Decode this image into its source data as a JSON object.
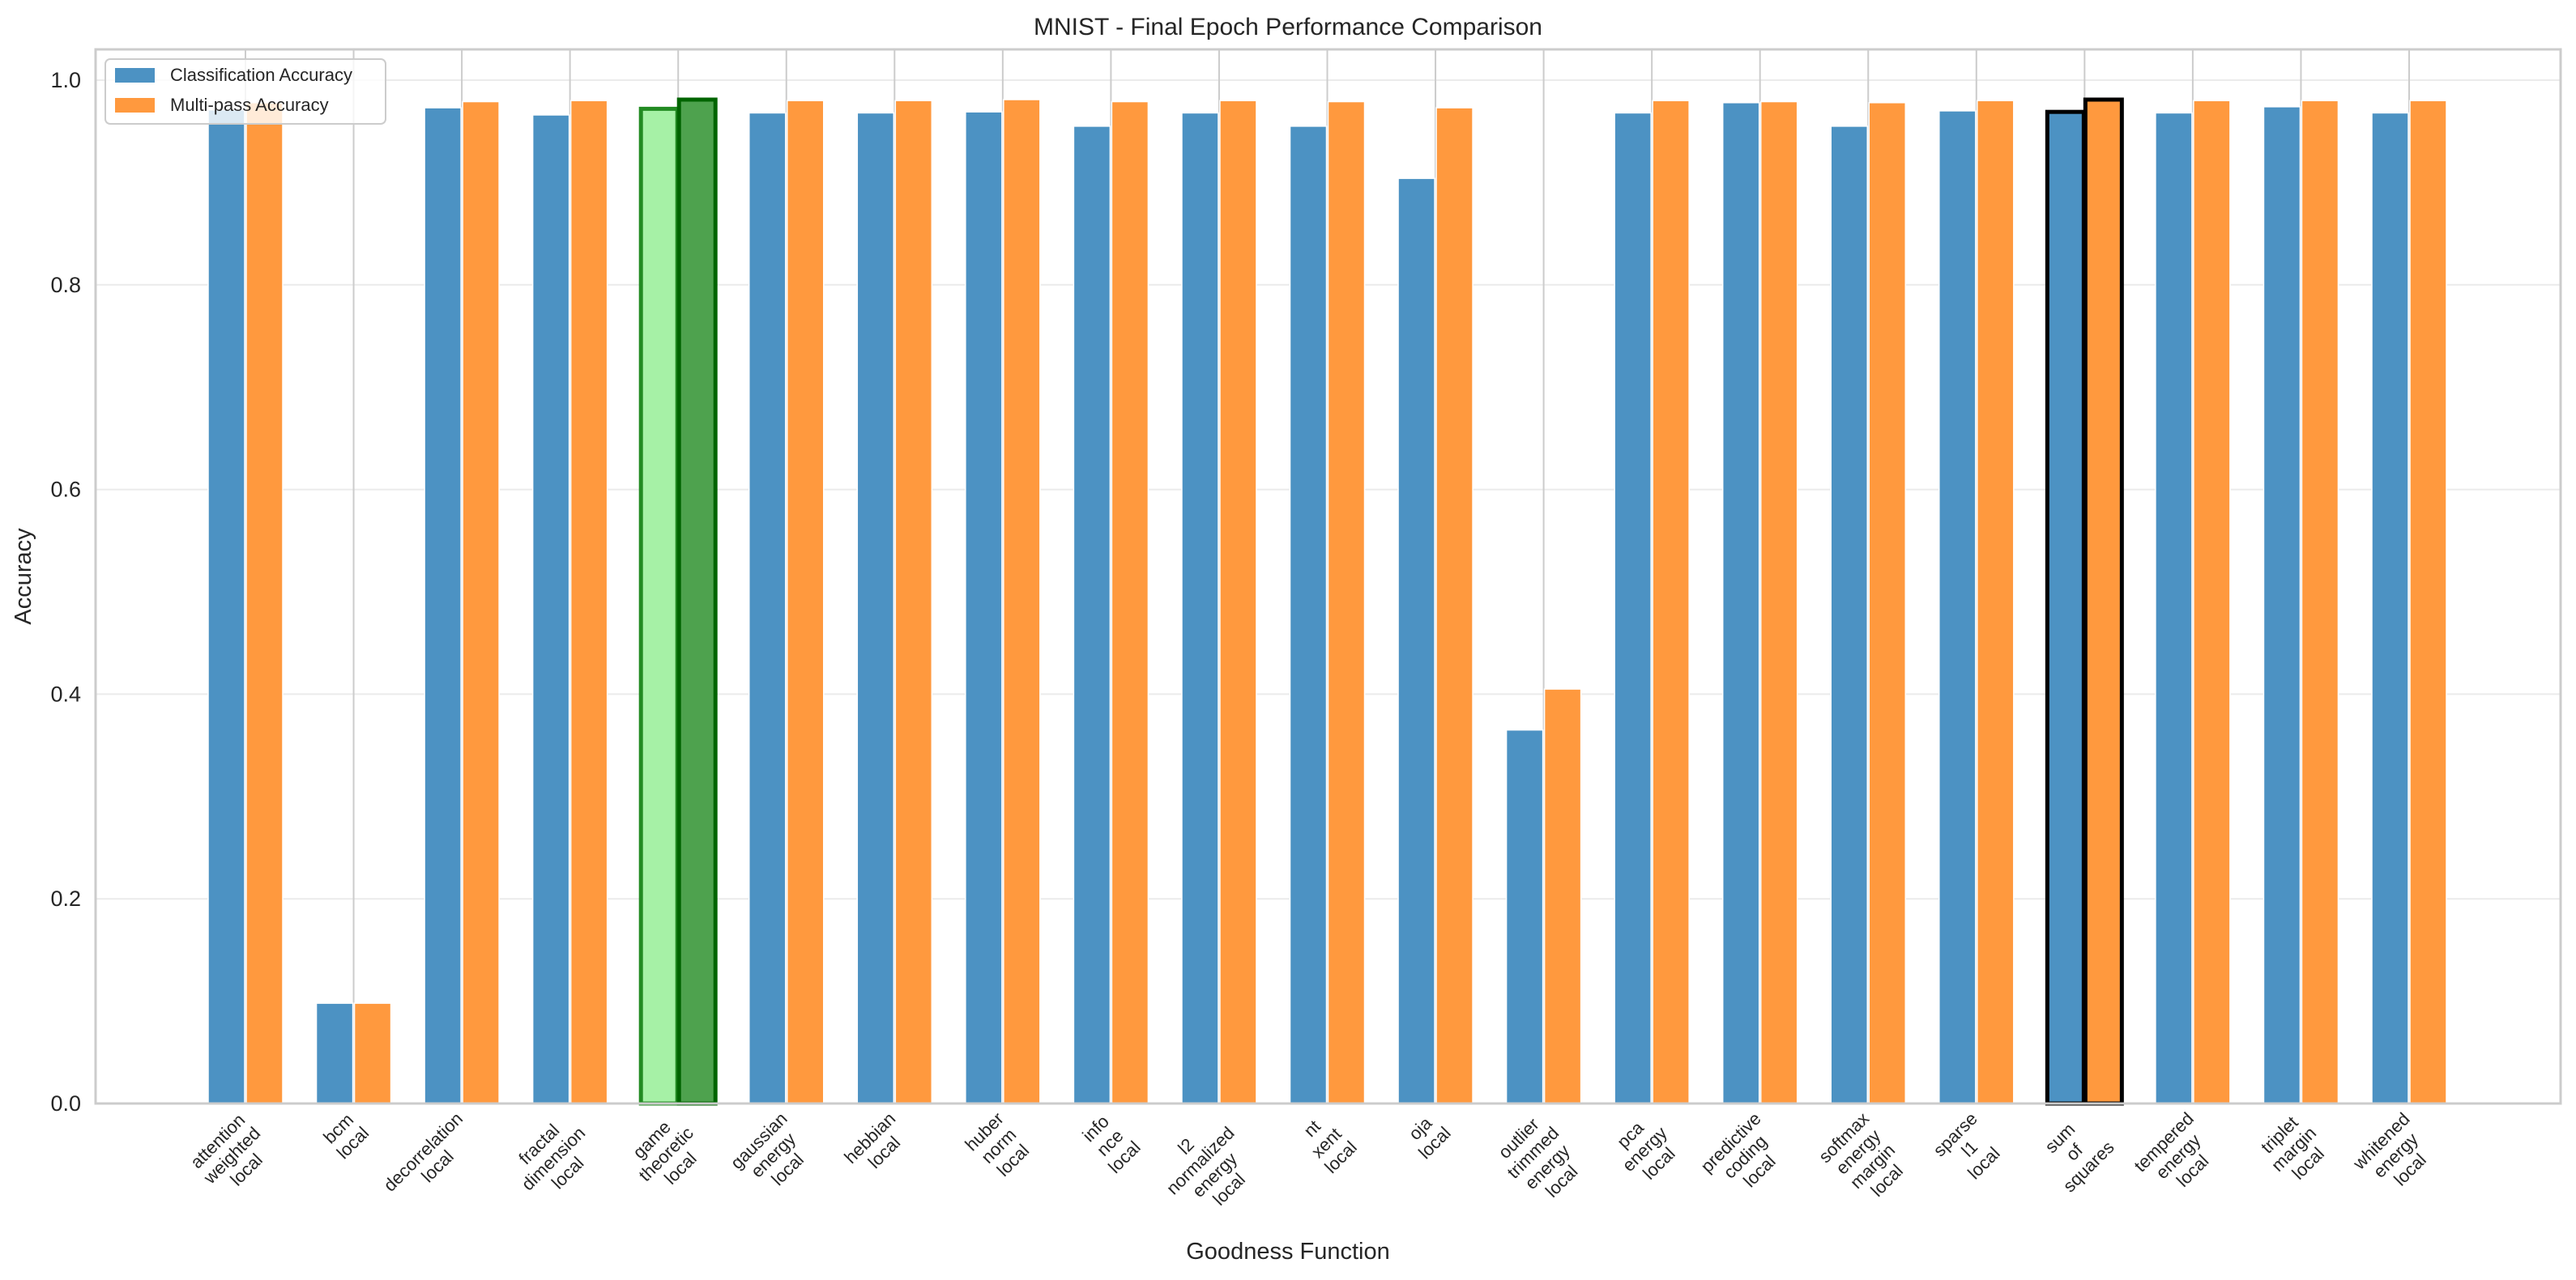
{
  "chart_data": {
    "type": "bar",
    "title": "MNIST - Final Epoch Performance Comparison",
    "xlabel": "Goodness Function",
    "ylabel": "Accuracy",
    "ylim": [
      0,
      1.03
    ],
    "yticks": [
      "0.0",
      "0.2",
      "0.4",
      "0.6",
      "0.8",
      "1.0"
    ],
    "grid": true,
    "legend_position": "upper left",
    "categories": [
      "attention weighted local",
      "bcm local",
      "decorrelation local",
      "fractal dimension local",
      "game theoretic local",
      "gaussian energy local",
      "hebbian local",
      "huber norm local",
      "info nce local",
      "l2 normalized energy local",
      "nt xent local",
      "oja local",
      "outlier trimmed energy local",
      "pca energy local",
      "predictive coding local",
      "softmax energy margin local",
      "sparse l1 local",
      "sum of squares",
      "tempered energy local",
      "triplet margin local",
      "whitened energy local"
    ],
    "series": [
      {
        "name": "Classification Accuracy",
        "color": "#1f77b4",
        "values": [
          0.971,
          0.098,
          0.973,
          0.966,
          0.972,
          0.968,
          0.968,
          0.969,
          0.955,
          0.968,
          0.955,
          0.904,
          0.365,
          0.968,
          0.978,
          0.955,
          0.97,
          0.969,
          0.968,
          0.974,
          0.968
        ]
      },
      {
        "name": "Multi-pass Accuracy",
        "color": "#ff7f0e",
        "values": [
          0.978,
          0.098,
          0.979,
          0.98,
          0.981,
          0.98,
          0.98,
          0.981,
          0.979,
          0.98,
          0.979,
          0.973,
          0.405,
          0.98,
          0.979,
          0.978,
          0.98,
          0.981,
          0.98,
          0.98,
          0.98
        ]
      }
    ],
    "highlights": [
      {
        "category": "game theoretic local",
        "series": "Classification Accuracy",
        "fill": "#90ee90",
        "edge": "#228b22"
      },
      {
        "category": "game theoretic local",
        "series": "Multi-pass Accuracy",
        "fill": "#228b22",
        "edge": "#006400"
      },
      {
        "category": "sum of squares",
        "series": "Classification Accuracy",
        "fill": "#1f77b4",
        "edge": "#000000"
      },
      {
        "category": "sum of squares",
        "series": "Multi-pass Accuracy",
        "fill": "#ff7f0e",
        "edge": "#000000"
      }
    ]
  },
  "tick_labels": [
    [
      "attention",
      "weighted",
      "local"
    ],
    [
      "bcm",
      "local"
    ],
    [
      "decorrelation",
      "local"
    ],
    [
      "fractal",
      "dimension",
      "local"
    ],
    [
      "game",
      "theoretic",
      "local"
    ],
    [
      "gaussian",
      "energy",
      "local"
    ],
    [
      "hebbian",
      "local"
    ],
    [
      "huber",
      "norm",
      "local"
    ],
    [
      "info",
      "nce",
      "local"
    ],
    [
      "l2",
      "normalized",
      "energy",
      "local"
    ],
    [
      "nt",
      "xent",
      "local"
    ],
    [
      "oja",
      "local"
    ],
    [
      "outlier",
      "trimmed",
      "energy",
      "local"
    ],
    [
      "pca",
      "energy",
      "local"
    ],
    [
      "predictive",
      "coding",
      "local"
    ],
    [
      "softmax",
      "energy",
      "margin",
      "local"
    ],
    [
      "sparse",
      "l1",
      "local"
    ],
    [
      "sum",
      "of",
      "squares"
    ],
    [
      "tempered",
      "energy",
      "local"
    ],
    [
      "triplet",
      "margin",
      "local"
    ],
    [
      "whitened",
      "energy",
      "local"
    ]
  ],
  "legend": {
    "items": [
      {
        "label": "Classification Accuracy",
        "color": "#1f77b4"
      },
      {
        "label": "Multi-pass Accuracy",
        "color": "#ff7f0e"
      }
    ]
  }
}
